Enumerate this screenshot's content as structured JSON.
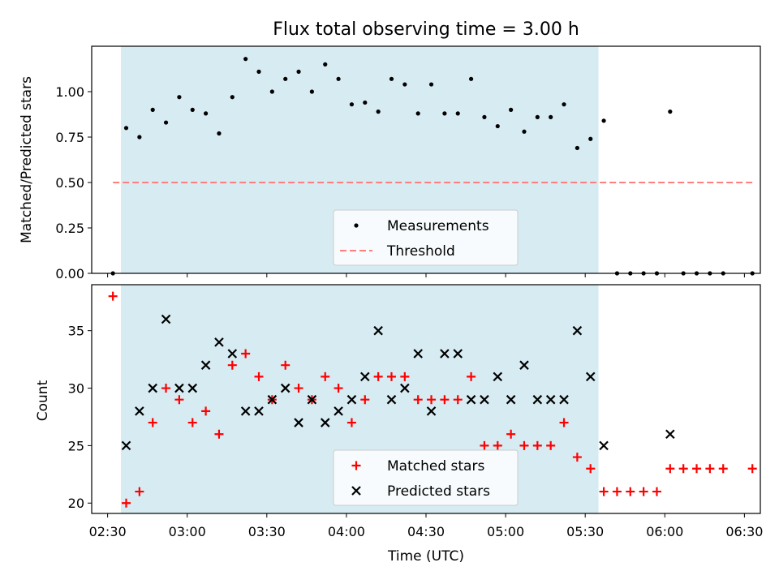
{
  "title": "Flux total observing time = 3.00 h",
  "colors": {
    "shade": "#add8e6",
    "measurement": "#000000",
    "threshold": "#ff7f7f",
    "matched": "#ff0000",
    "predicted": "#000000"
  },
  "x_ticks": [
    "02:30",
    "03:00",
    "03:30",
    "04:00",
    "04:30",
    "05:00",
    "05:30",
    "06:00",
    "06:30"
  ],
  "chart_data": [
    {
      "type": "scatter",
      "ylabel": "Matched/Predicted stars",
      "xlabel": "",
      "x_unit": "minutes",
      "x_range": [
        "02:24",
        "06:36"
      ],
      "ylim": [
        0,
        1.25
      ],
      "yticks": [
        "0.00",
        "0.25",
        "0.50",
        "0.75",
        "1.00"
      ],
      "shaded_interval": [
        "02:35",
        "05:35"
      ],
      "threshold": {
        "y": 0.5,
        "x_from": "02:32",
        "x_to": "06:33"
      },
      "legend": {
        "position": "lower-center",
        "entries": [
          "Measurements",
          "Threshold"
        ]
      },
      "series": [
        {
          "name": "Measurements",
          "x": [
            "02:32",
            "02:37",
            "02:42",
            "02:47",
            "02:52",
            "02:57",
            "03:02",
            "03:07",
            "03:12",
            "03:17",
            "03:22",
            "03:27",
            "03:32",
            "03:37",
            "03:42",
            "03:47",
            "03:52",
            "03:57",
            "04:02",
            "04:07",
            "04:12",
            "04:17",
            "04:22",
            "04:27",
            "04:32",
            "04:37",
            "04:42",
            "04:47",
            "04:52",
            "04:57",
            "05:02",
            "05:07",
            "05:12",
            "05:17",
            "05:22",
            "05:27",
            "05:32",
            "05:37",
            "05:42",
            "05:47",
            "05:52",
            "05:57",
            "06:02",
            "06:07",
            "06:12",
            "06:17",
            "06:22",
            "06:33"
          ],
          "y": [
            0.0,
            0.8,
            0.75,
            0.9,
            0.83,
            0.97,
            0.9,
            0.88,
            0.77,
            0.97,
            1.18,
            1.11,
            1.0,
            1.07,
            1.11,
            1.0,
            1.15,
            1.07,
            0.93,
            0.94,
            0.89,
            1.07,
            1.04,
            0.88,
            1.04,
            0.88,
            0.88,
            1.07,
            0.86,
            0.81,
            0.9,
            0.78,
            0.86,
            0.86,
            0.93,
            0.69,
            0.74,
            0.84,
            0.0,
            0.0,
            0.0,
            0.0,
            0.89,
            0.0,
            0.0,
            0.0,
            0.0,
            0.0
          ]
        }
      ]
    },
    {
      "type": "scatter",
      "ylabel": "Count",
      "xlabel": "Time (UTC)",
      "x_unit": "minutes",
      "x_range": [
        "02:24",
        "06:36"
      ],
      "ylim": [
        19.1,
        39
      ],
      "yticks": [
        "20",
        "25",
        "30",
        "35"
      ],
      "shaded_interval": [
        "02:35",
        "05:35"
      ],
      "legend": {
        "position": "lower-center",
        "entries": [
          "Matched stars",
          "Predicted stars"
        ]
      },
      "series": [
        {
          "name": "Matched stars",
          "marker": "+",
          "x": [
            "02:32",
            "02:37",
            "02:42",
            "02:47",
            "02:52",
            "02:57",
            "03:02",
            "03:07",
            "03:12",
            "03:17",
            "03:22",
            "03:27",
            "03:32",
            "03:37",
            "03:42",
            "03:47",
            "03:52",
            "03:57",
            "04:02",
            "04:07",
            "04:12",
            "04:17",
            "04:22",
            "04:27",
            "04:32",
            "04:37",
            "04:42",
            "04:47",
            "04:52",
            "04:57",
            "05:02",
            "05:07",
            "05:12",
            "05:17",
            "05:22",
            "05:27",
            "05:32",
            "05:37",
            "05:42",
            "05:47",
            "05:52",
            "05:57",
            "06:02",
            "06:07",
            "06:12",
            "06:17",
            "06:22",
            "06:33"
          ],
          "y": [
            38,
            20,
            21,
            27,
            30,
            29,
            27,
            28,
            26,
            32,
            33,
            31,
            29,
            32,
            30,
            29,
            31,
            30,
            27,
            29,
            31,
            31,
            31,
            29,
            29,
            29,
            29,
            31,
            25,
            25,
            26,
            25,
            25,
            25,
            27,
            24,
            23,
            21,
            21,
            21,
            21,
            21,
            23,
            23,
            23,
            23,
            23,
            23
          ]
        },
        {
          "name": "Predicted stars",
          "marker": "x",
          "x": [
            "02:37",
            "02:42",
            "02:47",
            "02:52",
            "02:57",
            "03:02",
            "03:07",
            "03:12",
            "03:17",
            "03:22",
            "03:27",
            "03:32",
            "03:37",
            "03:42",
            "03:47",
            "03:52",
            "03:57",
            "04:02",
            "04:07",
            "04:12",
            "04:17",
            "04:22",
            "04:27",
            "04:32",
            "04:37",
            "04:42",
            "04:47",
            "04:52",
            "04:57",
            "05:02",
            "05:07",
            "05:12",
            "05:17",
            "05:22",
            "05:27",
            "05:32",
            "05:37",
            "06:02"
          ],
          "y": [
            25,
            28,
            30,
            36,
            30,
            30,
            32,
            34,
            33,
            28,
            28,
            29,
            30,
            27,
            29,
            27,
            28,
            29,
            31,
            35,
            29,
            30,
            33,
            28,
            33,
            33,
            29,
            29,
            31,
            29,
            32,
            29,
            29,
            29,
            35,
            31,
            25,
            26
          ]
        }
      ]
    }
  ]
}
